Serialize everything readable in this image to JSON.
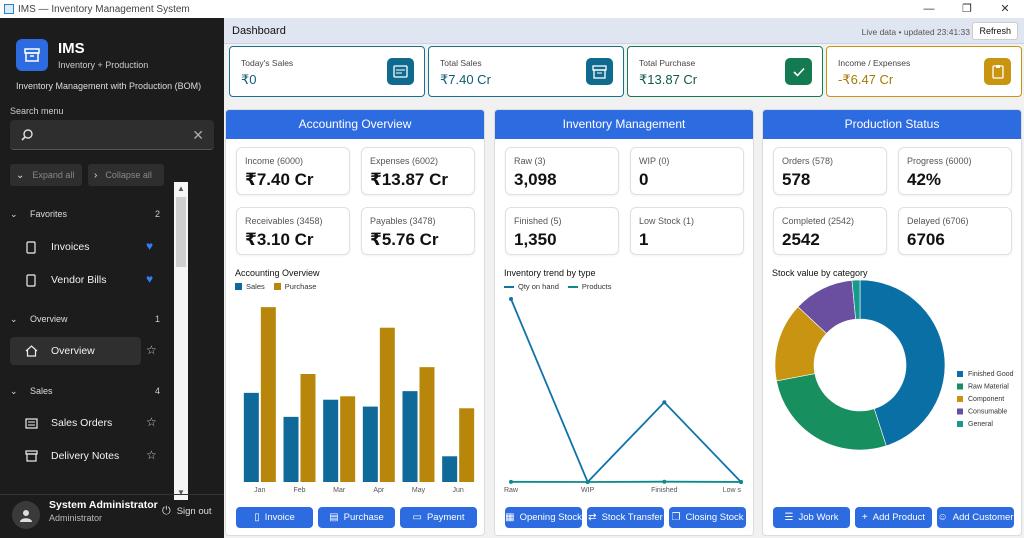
{
  "window": {
    "title": "IMS — Inventory Management System",
    "controls": [
      "—",
      "❐",
      "✕"
    ]
  },
  "sidebar": {
    "brand": "IMS",
    "brand_sub": "Inventory + Production",
    "description": "Inventory Management with Production (BOM)",
    "search_label": "Search menu",
    "search_value": "",
    "expand_all": "Expand all",
    "collapse_all": "Collapse all",
    "sections": [
      {
        "label": "Favorites",
        "count": "2"
      },
      {
        "label": "Overview",
        "count": "1"
      },
      {
        "label": "Sales",
        "count": "4"
      }
    ],
    "items": {
      "invoices": "Invoices",
      "vendor_bills": "Vendor Bills",
      "overview": "Overview",
      "sales_orders": "Sales Orders",
      "delivery_notes": "Delivery Notes"
    },
    "user_name": "System Administrator",
    "user_role": "Administrator",
    "sign_out": "Sign out"
  },
  "header": {
    "title": "Dashboard",
    "live": "Live data • updated 23:41:33",
    "refresh": "Refresh"
  },
  "kpis": [
    {
      "label": "Today's Sales",
      "value": "₹0",
      "color": "#0f6a8f"
    },
    {
      "label": "Total Sales",
      "value": "₹7.40 Cr",
      "color": "#0f6a8f"
    },
    {
      "label": "Total Purchase",
      "value": "₹13.87 Cr",
      "color": "#137a52"
    },
    {
      "label": "Income / Expenses",
      "value": "-₹6.47 Cr",
      "color": "#b8860b"
    }
  ],
  "accounting": {
    "title": "Accounting Overview",
    "stats": [
      {
        "label": "Income (6000)",
        "value": "₹7.40 Cr"
      },
      {
        "label": "Expenses (6002)",
        "value": "₹13.87 Cr"
      },
      {
        "label": "Receivables (3458)",
        "value": "₹3.10 Cr"
      },
      {
        "label": "Payables (3478)",
        "value": "₹5.76 Cr"
      }
    ],
    "chart_title": "Accounting Overview",
    "buttons": [
      "Invoice",
      "Purchase",
      "Payment"
    ]
  },
  "inventory": {
    "title": "Inventory Management",
    "stats": [
      {
        "label": "Raw (3)",
        "value": "3,098"
      },
      {
        "label": "WIP (0)",
        "value": "0"
      },
      {
        "label": "Finished (5)",
        "value": "1,350"
      },
      {
        "label": "Low Stock (1)",
        "value": "1"
      }
    ],
    "chart_title": "Inventory trend by type",
    "buttons": [
      "Opening Stock",
      "Stock Transfer",
      "Closing Stock"
    ]
  },
  "production": {
    "title": "Production Status",
    "stats": [
      {
        "label": "Orders (578)",
        "value": "578"
      },
      {
        "label": "Progress (6000)",
        "value": "42%"
      },
      {
        "label": "Completed (2542)",
        "value": "2542"
      },
      {
        "label": "Delayed (6706)",
        "value": "6706"
      }
    ],
    "chart_title": "Stock value by category",
    "buttons": [
      "Job Work",
      "Add Product",
      "Add Customer"
    ]
  },
  "chart_data": [
    {
      "type": "bar",
      "title": "",
      "categories": [
        "Jan",
        "Feb",
        "Mar",
        "Apr",
        "May",
        "Jun"
      ],
      "series": [
        {
          "name": "Sales",
          "color": "#0f6a9a",
          "values": [
            52,
            38,
            48,
            44,
            53,
            15
          ]
        },
        {
          "name": "Purchase",
          "color": "#b8860b",
          "values": [
            102,
            63,
            50,
            90,
            67,
            43
          ]
        }
      ],
      "ylim": [
        0,
        105
      ],
      "grid": false,
      "legend": "top-left"
    },
    {
      "type": "line",
      "title": "",
      "categories": [
        "Raw",
        "WIP",
        "Finished",
        "Low stock"
      ],
      "series": [
        {
          "name": "Qty on hand",
          "color": "#1173a8",
          "values": [
            3098,
            0,
            1350,
            1
          ]
        },
        {
          "name": "Products",
          "color": "#0e8a8a",
          "values": [
            3,
            0,
            5,
            1
          ]
        }
      ],
      "ylim": [
        0,
        3098
      ],
      "grid": false,
      "legend": "top-left"
    },
    {
      "type": "pie",
      "title": "",
      "labels": [
        "Finished Good",
        "Raw Material",
        "Component",
        "Consumable",
        "General"
      ],
      "values": [
        45,
        27,
        15,
        11.5,
        1.5
      ],
      "colors": [
        "#0a6fa5",
        "#178f5f",
        "#c99412",
        "#6a4fa0",
        "#159a8c"
      ],
      "donut": true,
      "legend": "right"
    }
  ]
}
